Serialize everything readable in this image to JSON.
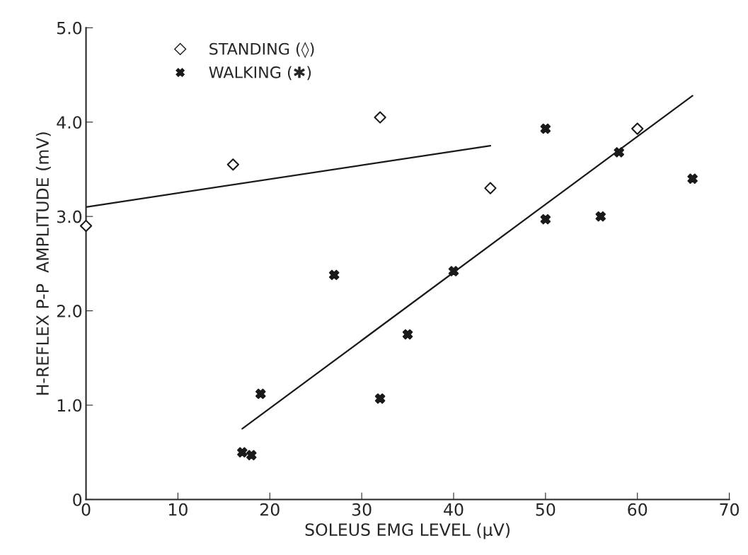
{
  "chart_data": {
    "type": "scatter",
    "xlabel": "SOLEUS EMG LEVEL (µV)",
    "ylabel": "H-REFLEX P-P  AMPLITUDE (mV)",
    "xlim": [
      0,
      70
    ],
    "xticks": [
      0,
      10,
      20,
      30,
      40,
      50,
      60,
      70
    ],
    "ylim": [
      0,
      5
    ],
    "yticks": [
      0,
      {
        "value": 1,
        "label": "1.0"
      },
      {
        "value": 2,
        "label": "2.0"
      },
      {
        "value": 3,
        "label": "3.0"
      },
      {
        "value": 4,
        "label": "4.0"
      },
      {
        "value": 5,
        "label": "5.0"
      }
    ],
    "grid": false,
    "legend": "top left",
    "series": [
      {
        "name": "STANDING (◊)",
        "color": "#1a1a1a",
        "marker": "diamond",
        "x": [
          0,
          16,
          32,
          44,
          60
        ],
        "values": [
          2.9,
          3.55,
          4.05,
          3.3,
          3.93
        ]
      },
      {
        "name": "WALKING (✱)",
        "color": "#1a1a1a",
        "marker": "cross",
        "x": [
          17,
          18,
          19,
          27,
          32,
          35,
          40,
          50,
          50,
          56,
          58,
          66
        ],
        "values": [
          0.5,
          0.47,
          1.12,
          2.38,
          1.07,
          1.75,
          2.42,
          3.93,
          2.97,
          3.0,
          3.68,
          3.4
        ]
      },
      {
        "type": "line",
        "color": "#1a1a1a",
        "x": [
          0,
          44
        ],
        "values": [
          3.1,
          3.75
        ]
      },
      {
        "type": "line",
        "color": "#1a1a1a",
        "x": [
          17,
          66
        ],
        "values": [
          0.75,
          4.28
        ]
      }
    ]
  }
}
